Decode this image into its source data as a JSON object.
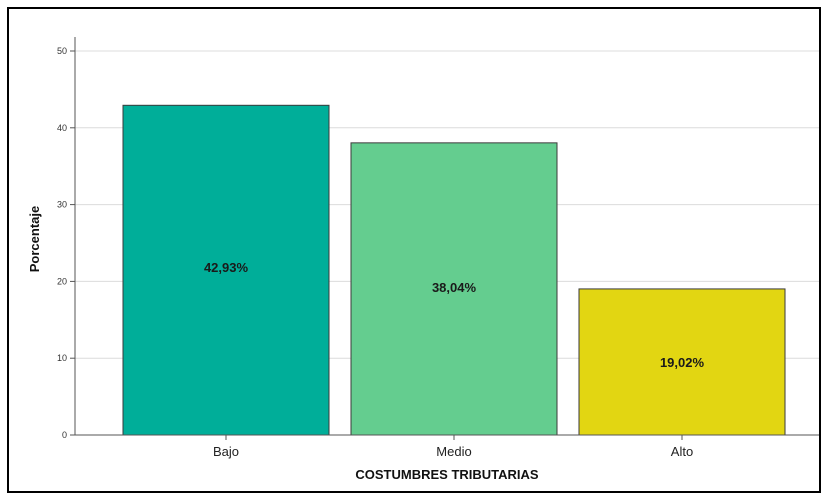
{
  "chart_data": {
    "type": "bar",
    "categories": [
      "Bajo",
      "Medio",
      "Alto"
    ],
    "values": [
      42.93,
      38.04,
      19.02
    ],
    "data_labels": [
      "42,93%",
      "38,04%",
      "19,02%"
    ],
    "colors": [
      "#00ae99",
      "#64cd8f",
      "#e2d612"
    ],
    "xlabel": "COSTUMBRES TRIBUTARIAS",
    "ylabel": "Porcentaje",
    "ylim": [
      0,
      50
    ],
    "yticks": [
      0,
      10,
      20,
      30,
      40,
      50
    ],
    "grid": true,
    "legend": "none"
  }
}
